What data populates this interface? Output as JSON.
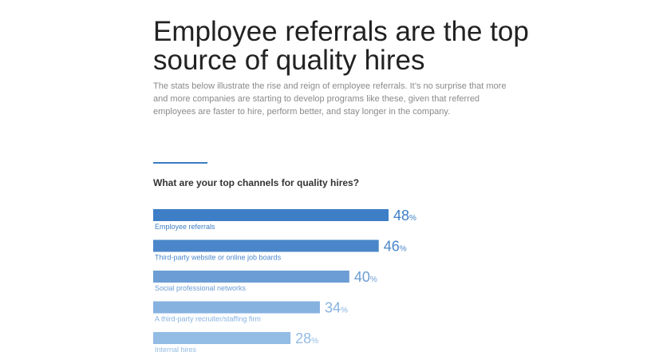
{
  "article": {
    "title": "Employee referrals are the top source of quality hires",
    "intro": "The stats below illustrate the rise and reign of employee referrals. It’s no surprise that more and more companies are starting to develop programs like these, given that referred employees are faster to hire, perform better, and stay longer in the company.",
    "question": "What are your top channels for quality hires?"
  },
  "colors": {
    "accent": "#3a7cc3",
    "bars": [
      "#3d7ec6",
      "#4a86c9",
      "#6c9dd4",
      "#86b2e0",
      "#93bce4"
    ]
  },
  "chart_data": {
    "type": "bar",
    "orientation": "horizontal",
    "title": "What are your top channels for quality hires?",
    "categories": [
      "Employee referrals",
      "Third-party website or online job boards",
      "Social professional networks",
      "A third-party recruiter/staffing firm",
      "Internal hires"
    ],
    "values": [
      48,
      46,
      40,
      34,
      28
    ],
    "unit": "%",
    "xlim": [
      0,
      100
    ],
    "grid": false,
    "legend": "none"
  }
}
